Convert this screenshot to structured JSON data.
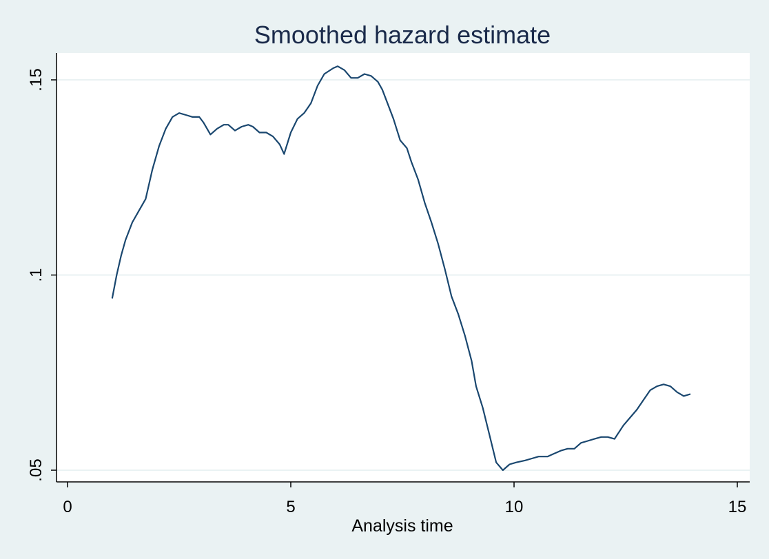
{
  "chart_data": {
    "type": "line",
    "title": "Smoothed hazard estimate",
    "xlabel": "Analysis time",
    "ylabel": "",
    "xlim": [
      0,
      15
    ],
    "ylim": [
      0.05,
      0.155
    ],
    "x_ticks": [
      {
        "value": 0,
        "label": "0"
      },
      {
        "value": 5,
        "label": "5"
      },
      {
        "value": 10,
        "label": "10"
      },
      {
        "value": 15,
        "label": "15"
      }
    ],
    "y_ticks": [
      {
        "value": 0.05,
        "label": ".05"
      },
      {
        "value": 0.1,
        "label": ".1"
      },
      {
        "value": 0.15,
        "label": ".15"
      }
    ],
    "grid": "horizontal",
    "legend": "none",
    "colors": {
      "background": "#eaf2f3",
      "plot": "#ffffff",
      "line": "#1a476f",
      "grid": "#eaf2f3"
    },
    "series": [
      {
        "x": [
          1.0,
          1.1,
          1.2,
          1.3,
          1.45,
          1.6,
          1.75,
          1.9,
          2.05,
          2.2,
          2.35,
          2.5,
          2.65,
          2.8,
          2.95,
          3.05,
          3.2,
          3.35,
          3.5,
          3.6,
          3.75,
          3.9,
          4.05,
          4.15,
          4.3,
          4.45,
          4.6,
          4.75,
          4.85,
          5.0,
          5.15,
          5.3,
          5.45,
          5.6,
          5.75,
          5.95,
          6.05,
          6.2,
          6.35,
          6.5,
          6.65,
          6.8,
          6.95,
          7.05,
          7.15,
          7.3,
          7.45,
          7.6,
          7.7,
          7.85,
          8.0,
          8.15,
          8.3,
          8.45,
          8.6,
          8.75,
          8.9,
          9.05,
          9.15,
          9.3,
          9.45,
          9.6,
          9.75,
          9.9,
          10.05,
          10.25,
          10.4,
          10.55,
          10.75,
          10.85,
          11.05,
          11.2,
          11.35,
          11.5,
          11.65,
          11.8,
          11.95,
          12.1,
          12.25,
          12.45,
          12.6,
          12.75,
          12.9,
          13.05,
          13.2,
          13.35,
          13.5,
          13.65,
          13.8,
          13.95
        ],
        "y": [
          0.094,
          0.1,
          0.105,
          0.109,
          0.1135,
          0.1165,
          0.1195,
          0.127,
          0.133,
          0.1375,
          0.1405,
          0.1415,
          0.141,
          0.1405,
          0.1405,
          0.139,
          0.136,
          0.1375,
          0.1385,
          0.1385,
          0.137,
          0.138,
          0.1385,
          0.138,
          0.1365,
          0.1365,
          0.1355,
          0.1335,
          0.131,
          0.1365,
          0.14,
          0.1415,
          0.144,
          0.1485,
          0.1515,
          0.153,
          0.1535,
          0.1525,
          0.1505,
          0.1505,
          0.1515,
          0.151,
          0.1495,
          0.1475,
          0.1445,
          0.14,
          0.1345,
          0.1325,
          0.129,
          0.1245,
          0.1185,
          0.1135,
          0.108,
          0.1015,
          0.0945,
          0.09,
          0.0845,
          0.078,
          0.0715,
          0.066,
          0.059,
          0.052,
          0.05,
          0.0515,
          0.052,
          0.0525,
          0.053,
          0.0535,
          0.0535,
          0.054,
          0.055,
          0.0555,
          0.0555,
          0.057,
          0.0575,
          0.058,
          0.0585,
          0.0585,
          0.058,
          0.0615,
          0.0635,
          0.0655,
          0.068,
          0.0705,
          0.0715,
          0.072,
          0.0715,
          0.07,
          0.069,
          0.0695
        ]
      }
    ]
  }
}
